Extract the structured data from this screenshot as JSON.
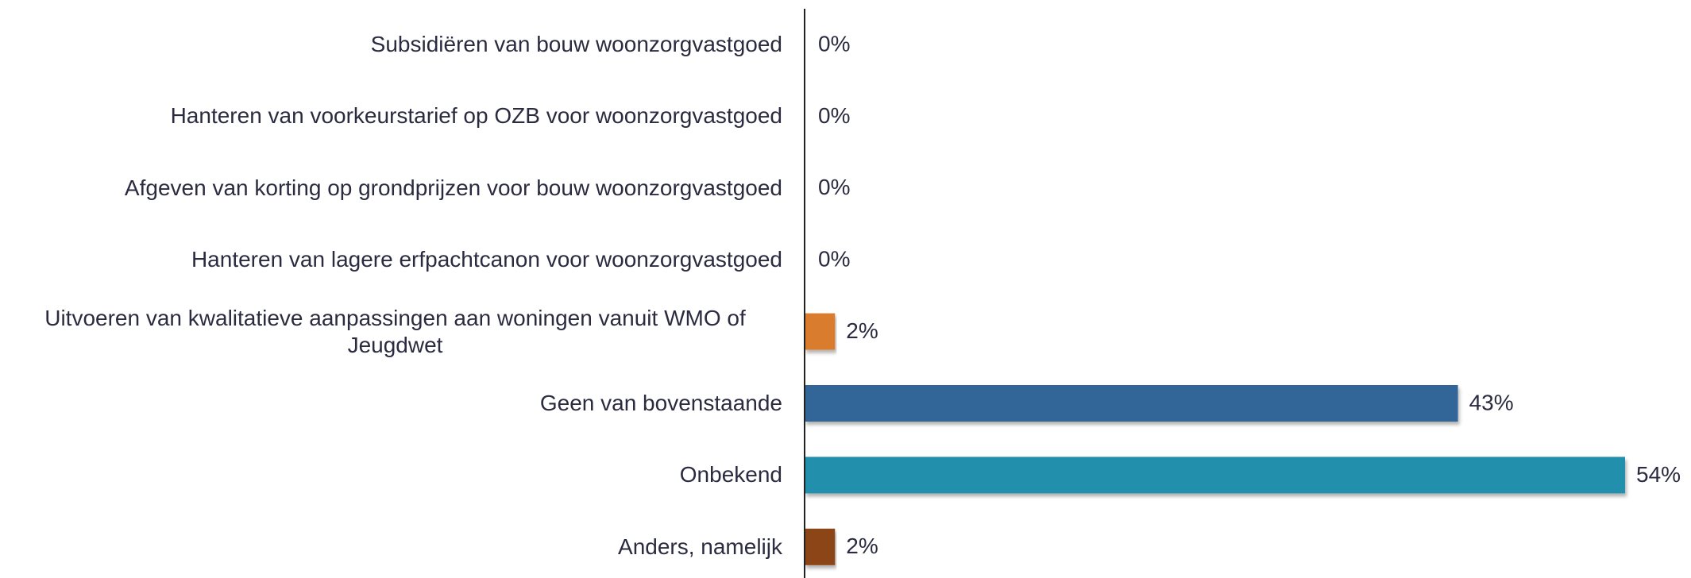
{
  "chart_data": {
    "type": "barh",
    "categories": [
      "Subsidiëren van bouw woonzorgvastgoed",
      "Hanteren van voorkeurstarief op OZB voor woonzorgvastgoed",
      "Afgeven van korting op grondprijzen voor bouw woonzorgvastgoed",
      "Hanteren van lagere erfpachtcanon voor woonzorgvastgoed",
      "Uitvoeren van kwalitatieve aanpassingen aan woningen vanuit WMO of Jeugdwet",
      "Geen van bovenstaande",
      "Onbekend",
      "Anders, namelijk"
    ],
    "values": [
      0,
      0,
      0,
      0,
      2,
      43,
      54,
      2
    ],
    "value_labels": [
      "0%",
      "0%",
      "0%",
      "0%",
      "2%",
      "43%",
      "54%",
      "2%"
    ],
    "colors": [
      "#d97b2e",
      "#d97b2e",
      "#d97b2e",
      "#d97b2e",
      "#d97b2e",
      "#336699",
      "#2190ad",
      "#8b4513"
    ],
    "xlim": [
      0,
      54
    ]
  }
}
